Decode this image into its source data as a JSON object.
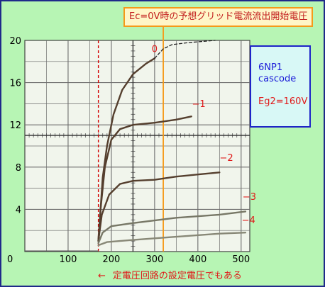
{
  "chart_data": {
    "type": "line",
    "title": "",
    "xlabel": "",
    "ylabel": "",
    "xlim": [
      0,
      520
    ],
    "ylim": [
      0,
      20
    ],
    "x_ticks": [
      "0",
      "100",
      "200",
      "300",
      "400",
      "500"
    ],
    "y_ticks": [
      "4",
      "8",
      "12",
      "16",
      "20"
    ],
    "grid": true,
    "series": [
      {
        "name": "0",
        "color": "#553f2e",
        "points": [
          [
            170,
            1
          ],
          [
            175,
            4
          ],
          [
            180,
            7
          ],
          [
            190,
            10
          ],
          [
            205,
            13
          ],
          [
            225,
            15.3
          ],
          [
            250,
            16.8
          ],
          [
            280,
            17.8
          ],
          [
            300,
            18.3
          ]
        ]
      },
      {
        "name": "0",
        "color": "#222222",
        "dashed": true,
        "points": [
          [
            300,
            18.3
          ],
          [
            320,
            19.2
          ],
          [
            340,
            19.6
          ],
          [
            380,
            19.8
          ],
          [
            440,
            20
          ]
        ]
      },
      {
        "name": "-1",
        "color": "#553f2e",
        "points": [
          [
            170,
            1
          ],
          [
            175,
            4
          ],
          [
            185,
            8
          ],
          [
            200,
            10.6
          ],
          [
            220,
            11.6
          ],
          [
            250,
            12
          ],
          [
            300,
            12.2
          ],
          [
            350,
            12.5
          ],
          [
            385,
            12.8
          ]
        ]
      },
      {
        "name": "-2",
        "color": "#553f2e",
        "points": [
          [
            170,
            1
          ],
          [
            178,
            3.5
          ],
          [
            195,
            5.4
          ],
          [
            220,
            6.4
          ],
          [
            250,
            6.7
          ],
          [
            300,
            6.8
          ],
          [
            350,
            7.1
          ],
          [
            400,
            7.3
          ],
          [
            450,
            7.5
          ]
        ]
      },
      {
        "name": "-3",
        "color": "#777766",
        "points": [
          [
            170,
            0.8
          ],
          [
            180,
            1.8
          ],
          [
            200,
            2.4
          ],
          [
            250,
            2.7
          ],
          [
            350,
            3.2
          ],
          [
            450,
            3.5
          ],
          [
            510,
            3.8
          ]
        ]
      },
      {
        "name": "-4",
        "color": "#888877",
        "points": [
          [
            170,
            0.6
          ],
          [
            190,
            0.9
          ],
          [
            250,
            1.1
          ],
          [
            350,
            1.4
          ],
          [
            450,
            1.7
          ],
          [
            510,
            1.8
          ]
        ]
      }
    ],
    "curve_labels": [
      {
        "text": "0",
        "x": 300,
        "y": 18.9
      },
      {
        "text": "−1",
        "x": 402,
        "y": 13.7
      },
      {
        "text": "−2",
        "x": 466,
        "y": 8.6
      },
      {
        "text": "−3",
        "x": 519,
        "y": 4.9
      },
      {
        "text": "−4",
        "x": 517,
        "y": 2.7
      }
    ],
    "vlines": [
      {
        "x": 170,
        "color": "#d40000",
        "style": "dashed"
      },
      {
        "x": 320,
        "color": "#f59a1a",
        "style": "solid"
      }
    ]
  },
  "annotations": {
    "top_note": "Ec=0V時の予想グリッド電流流出開始電圧",
    "bottom_note": "定電圧回路の設定電圧でもある",
    "bottom_arrow": "←"
  },
  "info_box": {
    "tube": "6NP1",
    "mode": "cascode",
    "eg2": "Eg2=160V"
  }
}
